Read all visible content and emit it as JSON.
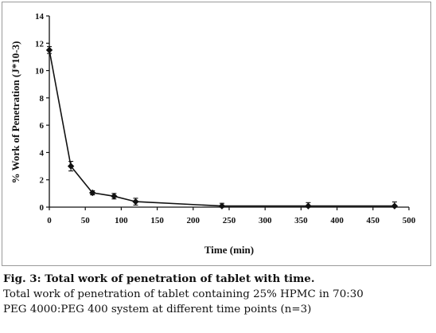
{
  "chart_data": {
    "type": "line",
    "xlabel": "Time (min)",
    "ylabel": "% Work of Penetration (J*10-3)",
    "xlim": [
      0,
      500
    ],
    "ylim": [
      0,
      14
    ],
    "xticks": [
      0,
      50,
      100,
      150,
      200,
      250,
      300,
      350,
      400,
      450,
      500
    ],
    "yticks": [
      0,
      2,
      4,
      6,
      8,
      10,
      12,
      14
    ],
    "grid": false,
    "legend": "none",
    "marker": "diamond",
    "error_bars": true,
    "series": [
      {
        "x": [
          0,
          30,
          60,
          90,
          120,
          240,
          360,
          480
        ],
        "values": [
          11.5,
          3.0,
          1.05,
          0.8,
          0.4,
          0.08,
          0.08,
          0.08
        ],
        "errors": [
          0.25,
          0.35,
          0.15,
          0.2,
          0.25,
          0.2,
          0.25,
          0.3
        ]
      }
    ]
  },
  "colors": {
    "line": "#111111",
    "frame": "#9a9a9a"
  },
  "caption": {
    "title": "Fig. 3: Total work of penetration of tablet with time.",
    "line1": "Total work of penetration of tablet containing 25% HPMC in 70:30",
    "line2": "PEG 4000:PEG 400 system at different time points (n=3)"
  }
}
